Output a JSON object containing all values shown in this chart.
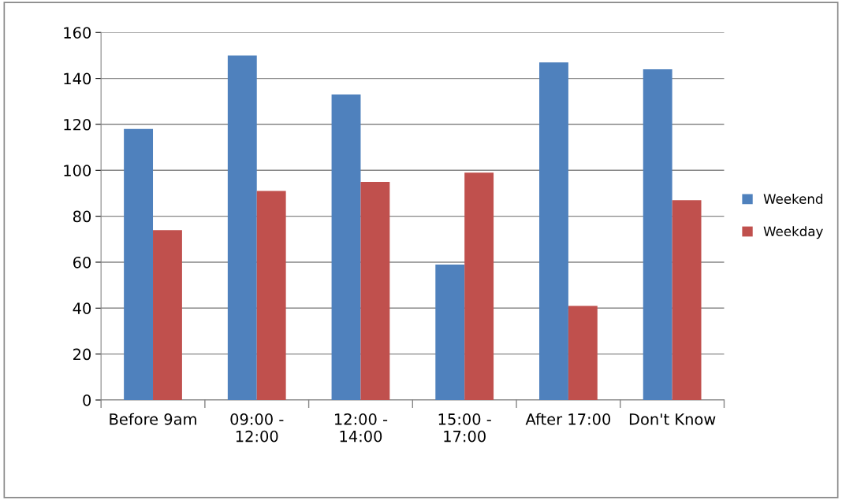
{
  "chart_data": {
    "type": "bar",
    "categories": [
      "Before 9am",
      "09:00 -\n12:00",
      "12:00 -\n14:00",
      "15:00 -\n17:00",
      "After 17:00",
      "Don't Know"
    ],
    "series": [
      {
        "name": "Weekend",
        "color": "#4f81bd",
        "values": [
          118,
          150,
          133,
          59,
          147,
          144
        ]
      },
      {
        "name": "Weekday",
        "color": "#c0504d",
        "values": [
          74,
          91,
          95,
          99,
          41,
          87
        ]
      }
    ],
    "ylim": [
      0,
      160
    ],
    "yticks": [
      0,
      20,
      40,
      60,
      80,
      100,
      120,
      140,
      160
    ],
    "grid": "y",
    "legend": "right"
  }
}
